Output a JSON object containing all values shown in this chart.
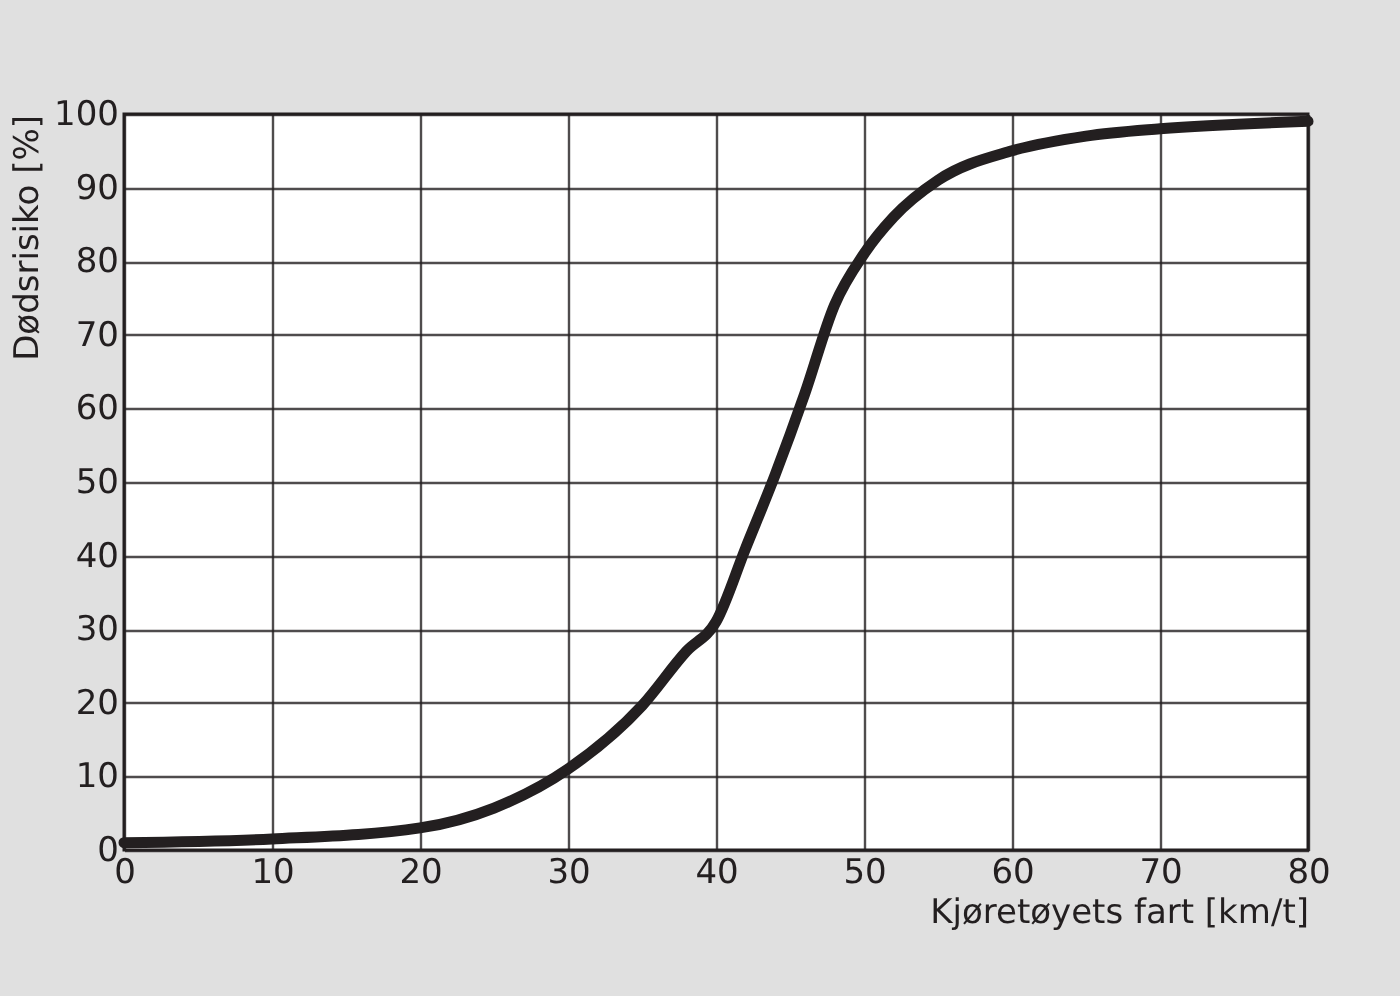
{
  "chart_data": {
    "type": "line",
    "xlabel": "Kjøretøyets fart [km/t]",
    "ylabel": "Dødsrisiko [%]",
    "x": [
      0,
      10,
      20,
      25,
      30,
      35,
      38,
      40,
      42,
      44,
      46,
      48,
      50,
      52,
      55,
      60,
      65,
      70,
      80
    ],
    "series": [
      {
        "color": "#231f20",
        "values": [
          1,
          1.5,
          3,
          5.7,
          11,
          19.6,
          27,
          31,
          41,
          51,
          62,
          74,
          81,
          86,
          91,
          95,
          97,
          98,
          99
        ]
      }
    ],
    "xlim": [
      0,
      80
    ],
    "xticks": [
      0,
      10,
      20,
      30,
      40,
      50,
      60,
      70,
      80
    ],
    "ylim": [
      0,
      100
    ],
    "yticks": [
      0,
      10,
      20,
      30,
      40,
      50,
      60,
      70,
      80,
      90,
      100
    ],
    "grid": true,
    "marker": "none",
    "line_style": "solid"
  }
}
